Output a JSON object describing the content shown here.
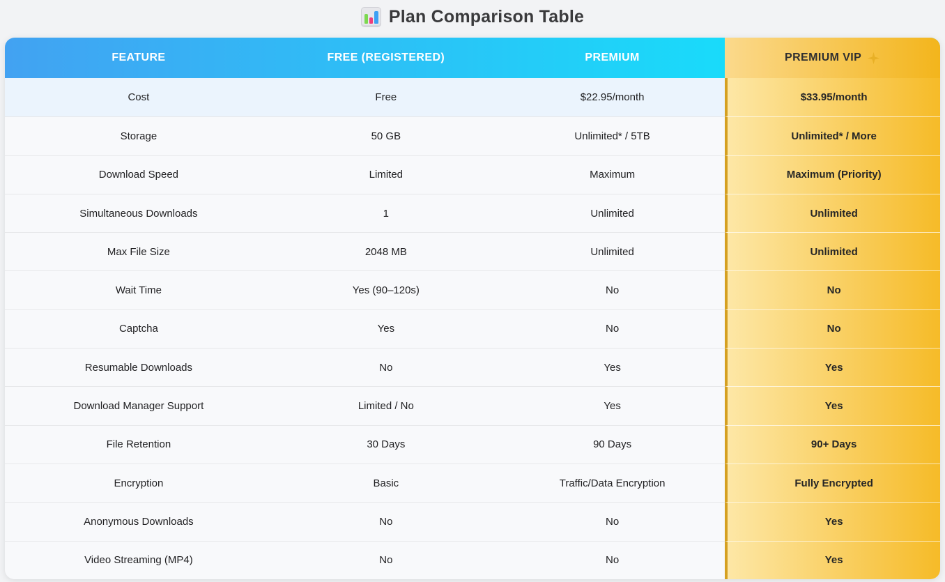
{
  "page": {
    "title": "Plan Comparison Table",
    "title_icon": "bar-chart-icon"
  },
  "table": {
    "columns": [
      {
        "label": "FEATURE"
      },
      {
        "label": "FREE (REGISTERED)"
      },
      {
        "label": "PREMIUM"
      },
      {
        "label": "PREMIUM VIP",
        "icon": "sparkle-icon"
      }
    ],
    "rows": [
      {
        "feature": "Cost",
        "free": "Free",
        "premium": "$22.95/month",
        "vip": "$33.95/month"
      },
      {
        "feature": "Storage",
        "free": "50 GB",
        "premium": "Unlimited* / 5TB",
        "vip": "Unlimited* / More"
      },
      {
        "feature": "Download Speed",
        "free": "Limited",
        "premium": "Maximum",
        "vip": "Maximum (Priority)"
      },
      {
        "feature": "Simultaneous Downloads",
        "free": "1",
        "premium": "Unlimited",
        "vip": "Unlimited"
      },
      {
        "feature": "Max File Size",
        "free": "2048 MB",
        "premium": "Unlimited",
        "vip": "Unlimited"
      },
      {
        "feature": "Wait Time",
        "free": "Yes (90–120s)",
        "premium": "No",
        "vip": "No"
      },
      {
        "feature": "Captcha",
        "free": "Yes",
        "premium": "No",
        "vip": "No"
      },
      {
        "feature": "Resumable Downloads",
        "free": "No",
        "premium": "Yes",
        "vip": "Yes"
      },
      {
        "feature": "Download Manager Support",
        "free": "Limited / No",
        "premium": "Yes",
        "vip": "Yes"
      },
      {
        "feature": "File Retention",
        "free": "30 Days",
        "premium": "90 Days",
        "vip": "90+ Days"
      },
      {
        "feature": "Encryption",
        "free": "Basic",
        "premium": "Traffic/Data Encryption",
        "vip": "Fully Encrypted"
      },
      {
        "feature": "Anonymous Downloads",
        "free": "No",
        "premium": "No",
        "vip": "Yes"
      },
      {
        "feature": "Video Streaming (MP4)",
        "free": "No",
        "premium": "No",
        "vip": "Yes"
      }
    ]
  },
  "colors": {
    "header_blue_start": "#42a2f2",
    "header_blue_end": "#19dbfa",
    "header_gold_start": "#fbd98c",
    "header_gold_end": "#f3b51c",
    "vip_cell_start": "#fde7a6",
    "vip_cell_end": "#f6bb28",
    "vip_border": "#d5a021",
    "first_row_bg": "#ebf4fd",
    "row_bg": "#f8f9fb",
    "page_bg": "#f2f3f5"
  }
}
